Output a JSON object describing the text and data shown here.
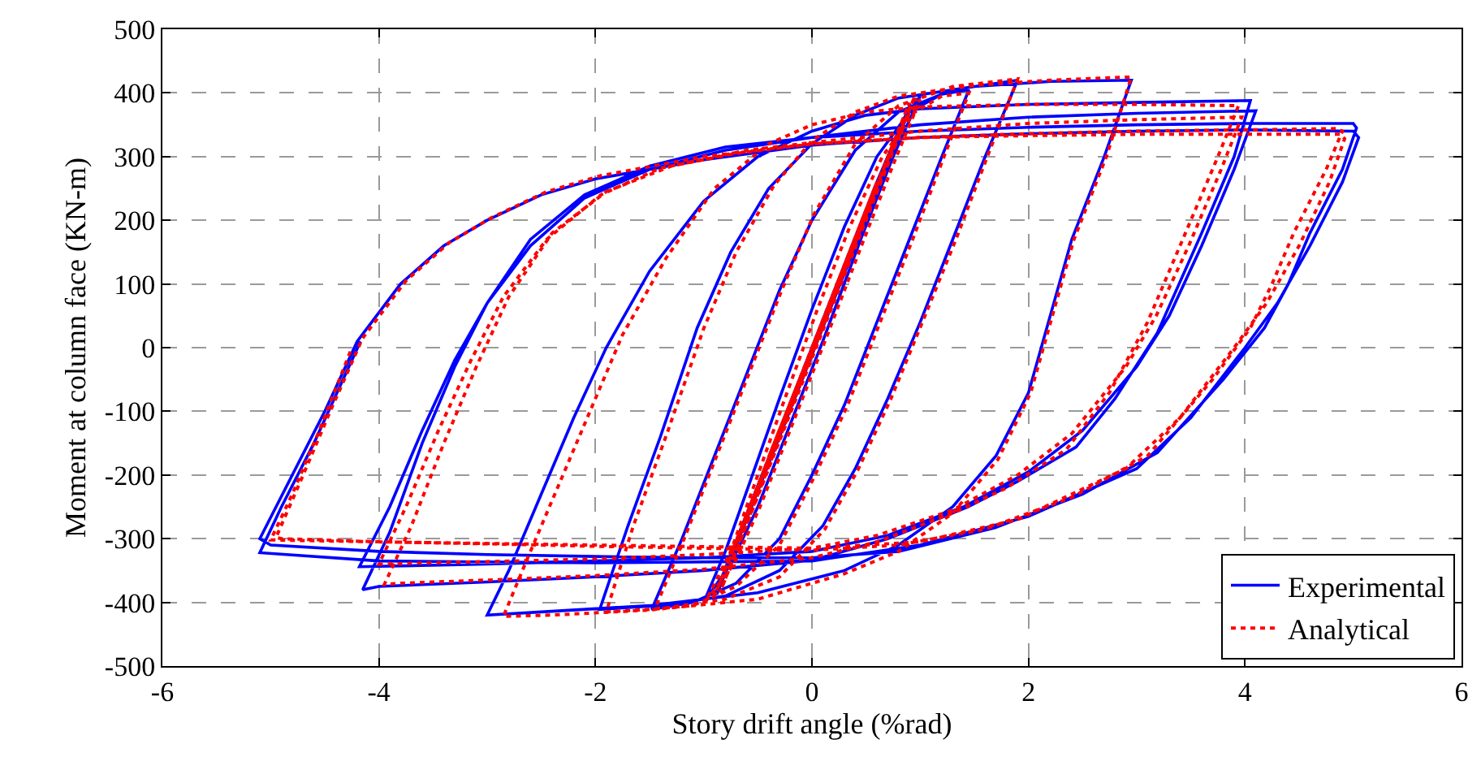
{
  "chart_data": {
    "type": "line",
    "xlabel": "Story drift angle (%rad)",
    "ylabel": "Moment at column face (KN-m)",
    "xlim": [
      -6,
      6
    ],
    "xticks": [
      -6,
      -4,
      -2,
      0,
      2,
      4,
      6
    ],
    "ylim": [
      -500,
      500
    ],
    "yticks": [
      -500,
      -400,
      -300,
      -200,
      -100,
      0,
      100,
      200,
      300,
      400,
      500
    ],
    "grid": true,
    "legend": "bottom right",
    "marker": "none",
    "series": [
      {
        "name": "Experimental",
        "color": "#0000ff",
        "line_style": "solid",
        "x": [
          0,
          0.42,
          -0.38,
          0.4,
          -0.4,
          0.62,
          -0.58,
          0.6,
          -0.6,
          0.92,
          -0.88,
          0.9,
          -0.9,
          -0.6,
          -0.3,
          0,
          0.3,
          0.6,
          0.85,
          1.0,
          0.75,
          0.45,
          0.1,
          -0.2,
          -0.5,
          -0.75,
          -1.0,
          -0.8,
          -0.55,
          -0.3,
          0,
          0.3,
          0.6,
          0.9,
          1.2,
          1.45,
          1.2,
          0.9,
          0.6,
          0.3,
          0,
          -0.3,
          -0.7,
          -1.1,
          -1.48,
          -1.2,
          -0.9,
          -0.6,
          -0.3,
          0,
          0.4,
          0.8,
          1.3,
          1.9,
          1.6,
          1.3,
          1.0,
          0.7,
          0.4,
          0.1,
          -0.3,
          -0.8,
          -1.4,
          -1.96,
          -1.7,
          -1.4,
          -1.06,
          -0.75,
          -0.4,
          0,
          0.4,
          0.8,
          1.5,
          2.2,
          2.95,
          2.7,
          2.4,
          2.0,
          1.7,
          1.3,
          0.8,
          0.3,
          -0.5,
          -1.5,
          -2.5,
          -3.0,
          -2.8,
          -2.5,
          -2.2,
          -1.9,
          -1.5,
          -1.0,
          -0.5,
          0,
          0.5,
          1,
          2,
          3,
          4.05,
          3.9,
          3.6,
          3.19,
          2.8,
          2.44,
          1.9,
          1.44,
          0.7,
          0,
          -1,
          -2,
          -3,
          -4.0,
          -4.15,
          -3.9,
          -3.6,
          -3.3,
          -3.0,
          -2.6,
          -2.1,
          -1.5,
          -0.8,
          0,
          1,
          2,
          3,
          4.1,
          3.9,
          3.6,
          3.3,
          3.0,
          2.5,
          2.0,
          1.4,
          0.7,
          0,
          -1,
          -2,
          -3,
          -4.18,
          -3.9,
          -3.6,
          -3.3,
          -3.0,
          -2.6,
          -2.1,
          -1.5,
          -0.8,
          0,
          1,
          2,
          3,
          4,
          5.0,
          5.03,
          4.9,
          4.6,
          4.4,
          4.18,
          3.8,
          3.19,
          2.5,
          1.69,
          0.8,
          0,
          -1,
          -2,
          -3,
          -4,
          -5.0,
          -5.1,
          -4.8,
          -4.5,
          -4.2,
          -3.8,
          -3.4,
          -3.0,
          -2.5,
          -2.0,
          -1.0,
          0,
          1,
          2,
          3,
          4,
          5.0,
          5.05,
          4.9,
          4.6,
          4.3,
          4.0,
          3.5,
          3.0,
          2.0,
          1.0,
          0,
          -2,
          -4,
          -5.1,
          -4.9,
          -4.6,
          -4.17
        ],
        "values": [
          0,
          175,
          -170,
          172,
          -175,
          262,
          -260,
          258,
          -265,
          382,
          -388,
          380,
          -390,
          -260,
          -130,
          0,
          130,
          260,
          360,
          395,
          300,
          170,
          10,
          -120,
          -250,
          -340,
          -400,
          -320,
          -200,
          -80,
          60,
          190,
          300,
          370,
          398,
          405,
          300,
          170,
          40,
          -90,
          -200,
          -300,
          -370,
          -400,
          -411,
          -300,
          -170,
          -40,
          90,
          200,
          310,
          370,
          405,
          420,
          300,
          170,
          40,
          -80,
          -190,
          -280,
          -350,
          -390,
          -405,
          -411,
          -280,
          -140,
          31,
          150,
          250,
          320,
          365,
          392,
          410,
          418,
          420,
          300,
          170,
          -71,
          -170,
          -250,
          -310,
          -350,
          -385,
          -405,
          -415,
          -420,
          -350,
          -230,
          -110,
          0,
          120,
          230,
          300,
          340,
          365,
          375,
          382,
          385,
          388,
          300,
          180,
          23,
          -80,
          -156,
          -210,
          -250,
          -300,
          -334,
          -350,
          -360,
          -368,
          -375,
          -380,
          -290,
          -150,
          -30,
          70,
          170,
          240,
          285,
          315,
          330,
          350,
          362,
          368,
          372,
          280,
          160,
          50,
          -30,
          -130,
          -195,
          -250,
          -295,
          -320,
          -330,
          -335,
          -340,
          -344,
          -250,
          -130,
          -20,
          70,
          160,
          235,
          280,
          310,
          330,
          340,
          346,
          350,
          352,
          352,
          345,
          280,
          180,
          100,
          31,
          -50,
          -165,
          -230,
          -283,
          -320,
          -330,
          -330,
          -328,
          -325,
          -320,
          -310,
          -300,
          -200,
          -100,
          10,
          100,
          160,
          200,
          240,
          265,
          295,
          318,
          330,
          336,
          340,
          342,
          340,
          330,
          260,
          160,
          70,
          0,
          -110,
          -190,
          -265,
          -310,
          -335,
          -338,
          -335,
          -322,
          -250,
          -150,
          10
        ]
      },
      {
        "name": "Analytical",
        "color": "#ff0000",
        "line_style": "dotted",
        "x": [
          0,
          0.4,
          -0.4,
          0.45,
          -0.45,
          0.6,
          -0.6,
          0.75,
          -0.75,
          0.9,
          -0.85,
          0.95,
          -0.9,
          -0.6,
          -0.3,
          0,
          0.3,
          0.6,
          0.85,
          1.0,
          0.78,
          0.48,
          0.12,
          -0.18,
          -0.48,
          -0.72,
          -0.98,
          -0.75,
          -0.5,
          -0.25,
          0.05,
          0.35,
          0.65,
          0.95,
          1.2,
          1.45,
          1.22,
          0.93,
          0.63,
          0.33,
          0.03,
          -0.3,
          -0.7,
          -1.1,
          -1.45,
          -1.18,
          -0.88,
          -0.58,
          -0.28,
          0.02,
          0.4,
          0.8,
          1.3,
          1.9,
          1.62,
          1.33,
          1.02,
          0.73,
          0.43,
          0.12,
          -0.3,
          -0.8,
          -1.4,
          -1.9,
          -1.65,
          -1.35,
          -1.0,
          -0.7,
          -0.35,
          0,
          0.4,
          0.8,
          1.5,
          2.2,
          2.95,
          2.72,
          2.42,
          2.02,
          1.72,
          1.3,
          0.8,
          0.3,
          -0.5,
          -1.5,
          -2.4,
          -2.85,
          -2.65,
          -2.35,
          -2.05,
          -1.75,
          -1.35,
          -0.9,
          -0.4,
          0,
          0.5,
          1,
          2,
          3,
          3.94,
          3.75,
          3.45,
          3.1,
          2.75,
          2.35,
          1.8,
          1.3,
          0.6,
          0,
          -1,
          -2,
          -3,
          -3.8,
          -3.95,
          -3.7,
          -3.4,
          -3.1,
          -2.8,
          -2.4,
          -1.9,
          -1.3,
          -0.6,
          0,
          1,
          2,
          3,
          3.97,
          3.78,
          3.48,
          3.18,
          2.9,
          2.4,
          1.9,
          1.3,
          0.6,
          0,
          -1,
          -2,
          -3,
          -4.0,
          -3.75,
          -3.45,
          -3.15,
          -2.85,
          -2.45,
          -1.95,
          -1.4,
          -0.7,
          0,
          1,
          2,
          3,
          4,
          4.85,
          4.9,
          4.75,
          4.45,
          4.25,
          4.05,
          3.7,
          3.1,
          2.4,
          1.6,
          0.8,
          0,
          -1,
          -2,
          -3,
          -4,
          -4.9,
          -4.95,
          -4.7,
          -4.45,
          -4.15,
          -3.75,
          -3.35,
          -2.95,
          -2.45,
          -1.95,
          -1.0,
          0,
          1,
          2,
          3,
          4,
          4.88,
          4.92,
          4.78,
          4.5,
          4.2,
          3.9,
          3.4,
          2.9,
          1.9,
          1.0,
          0,
          -2,
          -4,
          -5.0,
          -4.8,
          -4.55,
          -4.25
        ],
        "values": [
          0,
          170,
          -172,
          190,
          -195,
          260,
          -262,
          320,
          -325,
          385,
          -385,
          395,
          -390,
          -265,
          -135,
          -5,
          125,
          255,
          355,
          390,
          300,
          170,
          10,
          -120,
          -250,
          -340,
          -398,
          -320,
          -200,
          -80,
          60,
          190,
          300,
          370,
          395,
          400,
          300,
          170,
          40,
          -90,
          -200,
          -310,
          -375,
          -405,
          -410,
          -300,
          -170,
          -40,
          90,
          210,
          320,
          380,
          410,
          422,
          300,
          170,
          40,
          -80,
          -190,
          -285,
          -360,
          -395,
          -410,
          -415,
          -280,
          -140,
          30,
          150,
          255,
          325,
          370,
          395,
          412,
          420,
          425,
          300,
          170,
          -71,
          -175,
          -260,
          -320,
          -355,
          -395,
          -412,
          -420,
          -422,
          -340,
          -220,
          -100,
          20,
          140,
          250,
          320,
          350,
          370,
          378,
          382,
          382,
          380,
          300,
          180,
          40,
          -70,
          -160,
          -220,
          -260,
          -305,
          -330,
          -348,
          -358,
          -365,
          -370,
          -372,
          -280,
          -150,
          -30,
          80,
          180,
          245,
          285,
          310,
          322,
          340,
          352,
          358,
          362,
          280,
          160,
          50,
          -30,
          -135,
          -200,
          -255,
          -295,
          -315,
          -325,
          -332,
          -336,
          -340,
          -250,
          -130,
          -20,
          80,
          170,
          240,
          282,
          305,
          320,
          330,
          336,
          340,
          342,
          344,
          340,
          280,
          180,
          100,
          31,
          -50,
          -170,
          -235,
          -285,
          -310,
          -318,
          -315,
          -312,
          -308,
          -305,
          -300,
          -298,
          -200,
          -100,
          15,
          105,
          165,
          205,
          245,
          270,
          300,
          320,
          330,
          333,
          335,
          335,
          335,
          328,
          260,
          160,
          70,
          0,
          -110,
          -190,
          -270,
          -305,
          -315,
          -310,
          -305,
          -302,
          -230,
          -130,
          0
        ]
      }
    ]
  }
}
